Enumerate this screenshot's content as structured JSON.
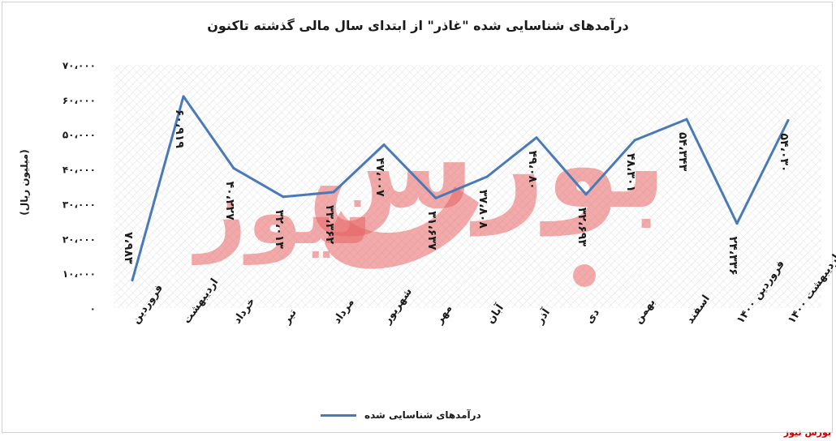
{
  "chart_data": {
    "type": "line",
    "title": "درآمدهای شناسایی شده \"غاذر\" از ابتدای سال مالی گذشته تاکنون",
    "ylabel": "(میلیون ریال)",
    "ylim": [
      0,
      70000
    ],
    "yticks": [
      "۰",
      "۱۰،۰۰۰",
      "۲۰،۰۰۰",
      "۳۰،۰۰۰",
      "۴۰،۰۰۰",
      "۵۰،۰۰۰",
      "۶۰،۰۰۰",
      "۷۰،۰۰۰"
    ],
    "categories": [
      "فروردین",
      "اردیبهشت",
      "خرداد",
      "تیر",
      "مرداد",
      "شهریور",
      "مهر",
      "آبان",
      "آذر",
      "دی",
      "بهمن",
      "اسفند",
      "فروردین ۱۴۰۰",
      "اردیبهشت ۱۴۰۰"
    ],
    "series": [
      {
        "name": "درآمدهای شناسایی شده",
        "color": "#4a7ab6",
        "values": [
          7983,
          60919,
          40227,
          32013,
          33362,
          47007,
          31637,
          37808,
          49080,
          32693,
          48301,
          54343,
          24336,
          54030
        ],
        "labels": [
          "۷،۹۸۳",
          "۶۰،۹۱۹",
          "۴۰،۲۲۷",
          "۳۲،۰۱۳",
          "۳۳،۳۶۲",
          "۴۷،۰۰۷",
          "۳۱،۶۳۷",
          "۳۷،۸۰۸",
          "۴۹،۰۸۰",
          "۳۲،۶۹۳",
          "۴۸،۳۰۱",
          "۵۴،۳۴۳",
          "۲۴،۳۳۶",
          "۵۴،۰۳۰"
        ]
      }
    ],
    "grid": "hatched background",
    "legend": "bottom"
  },
  "watermark": {
    "big_text": "بورس",
    "small_text": "نیوز",
    "color": "#e86464"
  },
  "source": "بورس نیوز"
}
